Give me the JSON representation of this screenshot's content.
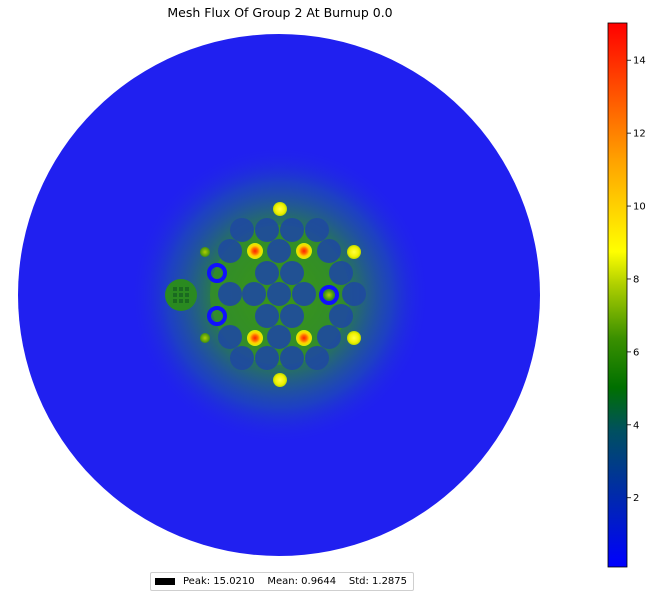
{
  "chart_data": {
    "type": "heatmap",
    "title": "Mesh Flux Of Group 2 At Burnup 0.0",
    "colorbar": {
      "min": 0.1,
      "max": 15.021,
      "ticks": [
        2,
        4,
        6,
        8,
        10,
        12,
        14
      ],
      "tick_labels": [
        "2",
        "4",
        "6",
        "8",
        "10",
        "12",
        "14"
      ],
      "colors": [
        "#0000ff",
        "#006400",
        "#ffff00",
        "#ff0000"
      ]
    },
    "stats": {
      "label": "Peak: 15.0210    Mean: 0.9644    Std: 1.2875",
      "peak": 15.021,
      "mean": 0.9644,
      "std": 1.2875
    },
    "domain": "circular mesh"
  }
}
